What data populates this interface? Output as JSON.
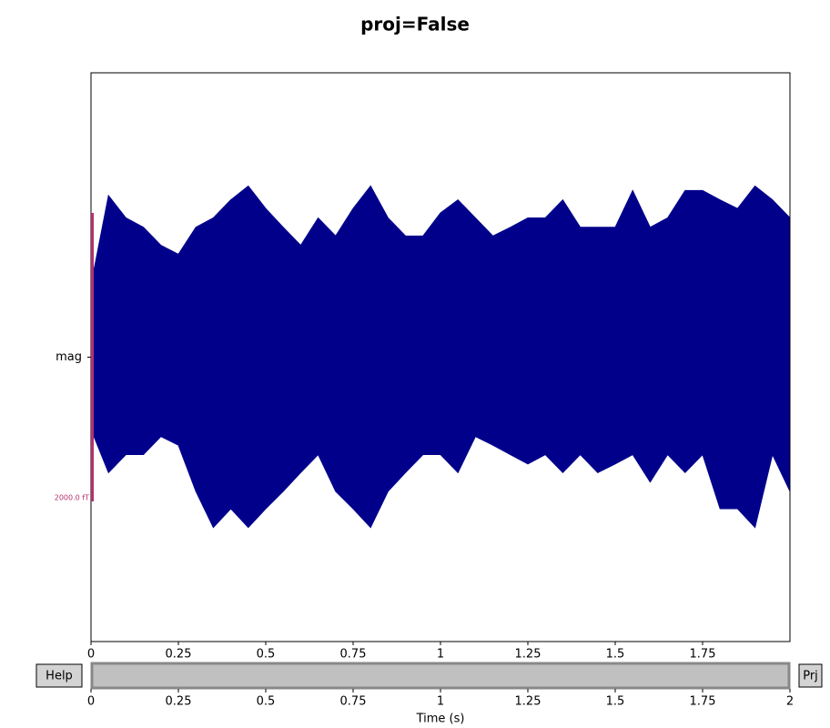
{
  "title": "proj=False",
  "chart_data": {
    "type": "area",
    "x": [
      0,
      0.05,
      0.1,
      0.15,
      0.2,
      0.25,
      0.3,
      0.35,
      0.4,
      0.45,
      0.5,
      0.55,
      0.6,
      0.65,
      0.7,
      0.75,
      0.8,
      0.85,
      0.9,
      0.95,
      1,
      1.05,
      1.1,
      1.15,
      1.2,
      1.25,
      1.3,
      1.35,
      1.4,
      1.45,
      1.5,
      1.55,
      1.6,
      1.65,
      1.7,
      1.75,
      1.8,
      1.85,
      1.9,
      1.95,
      2
    ],
    "series": [
      {
        "color": "#00008b",
        "values": [
          500,
          1120,
          965,
          900,
          775,
          713,
          900,
          965,
          1090,
          1186,
          1030,
          900,
          775,
          965,
          840,
          1030,
          1186,
          965,
          840,
          840,
          1000,
          1090,
          965,
          840,
          900,
          965,
          965,
          1090,
          900,
          900,
          900,
          1155,
          900,
          965,
          1155,
          1155,
          1090,
          1030,
          1186,
          1090,
          965
        ]
      },
      {
        "color": "#00008b",
        "values": [
          -500,
          -800,
          -675,
          -675,
          -550,
          -610,
          -930,
          -1180,
          -1050,
          -1180,
          -1050,
          -930,
          -800,
          -675,
          -930,
          -1050,
          -1180,
          -930,
          -800,
          -675,
          -675,
          -800,
          -550,
          -610,
          -675,
          -740,
          -675,
          -800,
          -675,
          -800,
          -740,
          -675,
          -865,
          -675,
          -800,
          -675,
          -1050,
          -1050,
          -1180,
          -675,
          -930
        ]
      }
    ],
    "categories": [
      "mag"
    ],
    "xlim": [
      0,
      2
    ],
    "xticks": [
      0,
      0.25,
      0.5,
      0.75,
      1,
      1.25,
      1.5,
      1.75
    ],
    "ylim": [
      -1971,
      1971
    ],
    "scale_bar": {
      "value": 2000,
      "label": "2000.0 fT",
      "color": "#b5306c"
    }
  },
  "scrollbar": {
    "xlim": [
      0,
      2
    ],
    "xticks": [
      0,
      0.25,
      0.5,
      0.75,
      1,
      1.25,
      1.5,
      1.75,
      2
    ],
    "xlabel": "Time (s)"
  },
  "buttons": [
    "Help",
    "Prj"
  ]
}
